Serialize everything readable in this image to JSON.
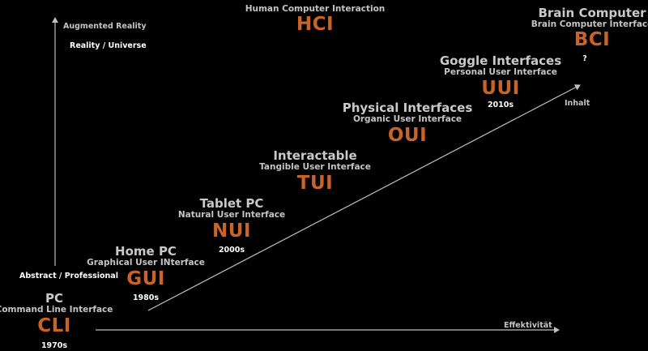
{
  "colors": {
    "background": "#000000",
    "accent": "#c8642a",
    "text": "#c9c9c9",
    "arrow": "#bfbfbf"
  },
  "axes": {
    "x_label": "Effektivität",
    "y_top_label": "Augmented Reality",
    "y_top_sub": "Reality / Universe",
    "y_bottom_label": "Abstract / Professional",
    "diagonal_label": "Inhalt"
  },
  "stages": [
    {
      "name": "PC",
      "full": "Command Line Interface",
      "abbr": "CLI",
      "era": "1970s"
    },
    {
      "name": "Home PC",
      "full": "Graphical User INterface",
      "abbr": "GUI",
      "era": "1980s"
    },
    {
      "name": "Tablet PC",
      "full": "Natural User Interface",
      "abbr": "NUI",
      "era": "2000s"
    },
    {
      "name": "Interactable",
      "full": "Tangible User Interface",
      "abbr": "TUI",
      "era": ""
    },
    {
      "name": "Physical Interfaces",
      "full": "Organic User Interface",
      "abbr": "OUI",
      "era": ""
    },
    {
      "name": "Goggle Interfaces",
      "full": "Personal User Interface",
      "abbr": "UUI",
      "era": "2010s"
    },
    {
      "name": "Brain Computer",
      "full": "Brain Computer Interface",
      "abbr": "BCI",
      "era": "?"
    }
  ],
  "hci": {
    "title": "Human Computer Interaction",
    "abbr": "HCI"
  }
}
